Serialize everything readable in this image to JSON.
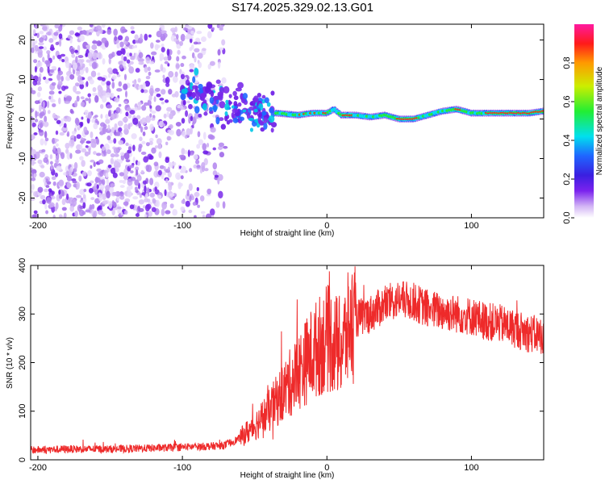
{
  "title": "S174.2025.329.02.13.G01",
  "chart_data": [
    {
      "type": "heatmap",
      "title": "S174.2025.329.02.13.G01",
      "xlabel": "Height of straight line (km)",
      "ylabel": "Frequency (Hz)",
      "xlim": [
        -205,
        150
      ],
      "ylim": [
        -25,
        24
      ],
      "xticks": [
        -200,
        -100,
        0,
        100
      ],
      "yticks": [
        20,
        10,
        0,
        -10,
        -20
      ],
      "colorbar": {
        "label": "Normalized spectral amplitude",
        "range": [
          0,
          1
        ],
        "ticks": [
          "0.0",
          "0.2",
          "0.4",
          "0.6",
          "0.8"
        ]
      },
      "ridge": {
        "x": [
          -35,
          -20,
          -10,
          0,
          5,
          10,
          20,
          30,
          40,
          50,
          60,
          70,
          80,
          90,
          100,
          110,
          120,
          130,
          140,
          150
        ],
        "freq": [
          1.5,
          1.0,
          1.5,
          1.5,
          2.5,
          1.0,
          1.0,
          0.5,
          1.0,
          0.0,
          0.0,
          1.0,
          2.0,
          2.5,
          1.5,
          1.5,
          1.5,
          1.5,
          1.5,
          2.0
        ]
      }
    },
    {
      "type": "line",
      "xlabel": "Height of straight line (km)",
      "ylabel": "SNR (10 * v/v)",
      "xlim": [
        -205,
        150
      ],
      "ylim": [
        0,
        400
      ],
      "xticks": [
        -200,
        -100,
        0,
        100
      ],
      "yticks": [
        0,
        100,
        200,
        300,
        400
      ],
      "series": [
        {
          "name": "SNR",
          "color": "#ee2a2a",
          "envelope_x": [
            -205,
            -180,
            -150,
            -120,
            -100,
            -80,
            -70,
            -60,
            -50,
            -40,
            -30,
            -20,
            -10,
            0,
            10,
            15,
            20,
            30,
            40,
            50,
            60,
            70,
            80,
            90,
            100,
            110,
            120,
            130,
            140,
            150
          ],
          "envelope_y": [
            20,
            22,
            22,
            24,
            26,
            28,
            30,
            45,
            70,
            100,
            140,
            180,
            220,
            250,
            230,
            270,
            290,
            300,
            320,
            330,
            325,
            310,
            305,
            300,
            295,
            285,
            280,
            270,
            260,
            255
          ]
        }
      ]
    }
  ]
}
